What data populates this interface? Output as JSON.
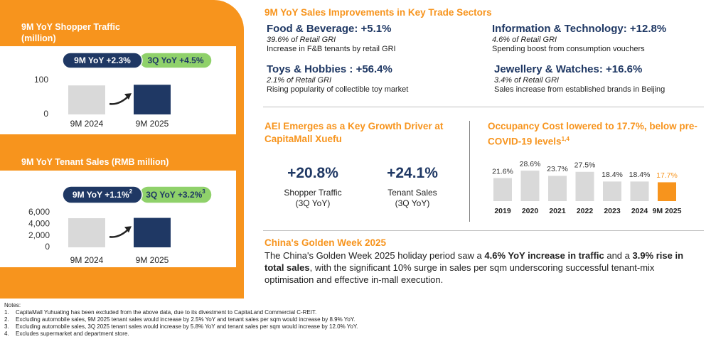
{
  "chart_data": [
    {
      "type": "bar",
      "title": "9M YoY Shopper Traffic",
      "subtitle": "(million)",
      "categories": [
        "9M 2024",
        "9M 2025"
      ],
      "values": [
        85,
        87
      ],
      "colors": [
        "#d9d9d9",
        "#1f3864"
      ],
      "ylim": [
        0,
        100
      ],
      "yticks": [
        0,
        100
      ],
      "annotations": [
        {
          "text": "9M YoY +2.3%"
        },
        {
          "text": "3Q YoY +4.5%"
        }
      ]
    },
    {
      "type": "bar",
      "title": "9M YoY Tenant Sales",
      "subtitle": "(RMB million)",
      "categories": [
        "9M 2024",
        "9M 2025"
      ],
      "values": [
        5020,
        5075
      ],
      "colors": [
        "#d9d9d9",
        "#1f3864"
      ],
      "ylim": [
        0,
        6000
      ],
      "yticks": [
        0,
        {
          "value": 2000,
          "label": "2,000"
        },
        {
          "value": 4000,
          "label": "4,000"
        },
        {
          "value": 6000,
          "label": "6,000"
        }
      ],
      "annotations": [
        {
          "text": "9M YoY +1.1%",
          "sup": "2"
        },
        {
          "text": "3Q YoY +3.2%",
          "sup": "3"
        }
      ]
    },
    {
      "type": "bar",
      "title": "Occupancy Cost lowered to 17.7%, below pre-COVID-19 levels",
      "title_sup": "1,4",
      "categories": [
        "2019",
        "2020",
        "2021",
        "2022",
        "2023",
        "2024",
        "9M 2025"
      ],
      "values": [
        21.6,
        28.6,
        23.7,
        27.5,
        18.4,
        18.4,
        17.7
      ],
      "value_labels": [
        "21.6%",
        "28.6%",
        "23.7%",
        "27.5%",
        "18.4%",
        "18.4%",
        "17.7%"
      ],
      "colors": [
        "#d9d9d9",
        "#d9d9d9",
        "#d9d9d9",
        "#d9d9d9",
        "#d9d9d9",
        "#d9d9d9",
        "#f7941d"
      ]
    }
  ],
  "sectors": {
    "title": "9M YoY Sales Improvements in Key Trade Sectors",
    "items": [
      {
        "heading": "Food & Beverage: +5.1%",
        "share": "39.6% of Retail GRI",
        "note": "Increase in F&B tenants by retail GRI"
      },
      {
        "heading": "Information & Technology: +12.8%",
        "share": "4.6% of Retail GRI",
        "note": "Spending boost from consumption vouchers"
      },
      {
        "heading": "Toys & Hobbies : +56.4%",
        "share": "2.1% of Retail GRI",
        "note": "Rising popularity of collectible toy market"
      },
      {
        "heading": "Jewellery & Watches: +16.6%",
        "share": "3.4% of Retail GRI",
        "note": "Sales increase from established brands in Beijing"
      }
    ]
  },
  "aei": {
    "title": "AEI Emerges as a Key Growth Driver at CapitaMall Xuefu",
    "stats": [
      {
        "value": "+20.8%",
        "label": "Shopper Traffic",
        "period": "(3Q YoY)"
      },
      {
        "value": "+24.1%",
        "label": "Tenant Sales",
        "period": "(3Q YoY)"
      }
    ]
  },
  "golden_week": {
    "title": "China's Golden Week 2025",
    "segments": [
      "The China's Golden Week 2025 holiday period saw a ",
      "4.6% YoY increase in traffic",
      " and a ",
      "3.9% rise in total sales",
      ", with the significant 10% surge in sales per sqm underscoring successful tenant-mix optimisation and effective in-mall execution."
    ]
  },
  "notes": {
    "title": "Notes:",
    "items": [
      {
        "num": "1.",
        "text": "CapitaMall Yuhuating has been excluded from the above data, due to its divestment to CapitaLand Commercial C-REIT."
      },
      {
        "num": "2.",
        "text": "Excluding automobile sales, 9M 2025 tenant sales would increase by 2.5% YoY and tenant sales per sqm would increase by 8.9% YoY."
      },
      {
        "num": "3.",
        "text": "Excluding automobile sales, 3Q 2025 tenant sales would increase by 5.8% YoY and tenant sales per sqm would increase by 12.0% YoY."
      },
      {
        "num": "4.",
        "text": "Excludes supermarket and department store."
      }
    ]
  }
}
